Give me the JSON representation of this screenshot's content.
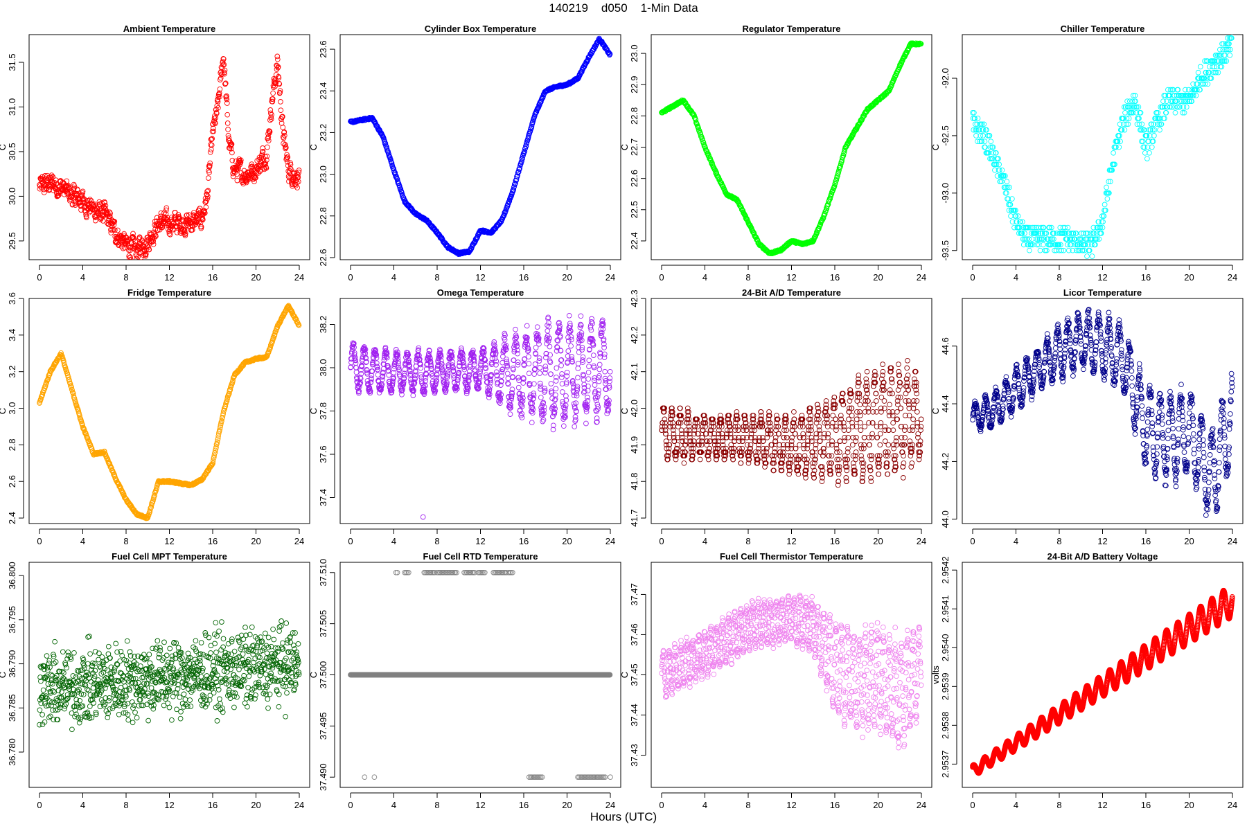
{
  "figure": {
    "title": "140219    d050    1-Min Data",
    "xlabel": "Hours (UTC)",
    "xticks": [
      0,
      4,
      8,
      12,
      16,
      20,
      24
    ]
  },
  "chart_data": [
    {
      "type": "scatter",
      "title": "Ambient Temperature",
      "ylabel": "C",
      "color": "#ff0000",
      "xlim": [
        -0.96,
        24.96
      ],
      "ylim": [
        29.29,
        31.81
      ],
      "yticks": [
        "29.5",
        "30.0",
        "30.5",
        "31.0",
        "31.5"
      ],
      "x": [
        0,
        1,
        2,
        3,
        4,
        5,
        6,
        7,
        8,
        9,
        10,
        11,
        12,
        13,
        14,
        15,
        15.5,
        16,
        16.5,
        17,
        17.5,
        18,
        19,
        20,
        21,
        21.5,
        22,
        22.5,
        23,
        24
      ],
      "y": [
        30.1,
        30.15,
        30.1,
        30.0,
        29.95,
        29.85,
        29.8,
        29.6,
        29.45,
        29.4,
        29.5,
        29.7,
        29.7,
        29.7,
        29.7,
        29.75,
        30.0,
        30.7,
        31.0,
        31.6,
        30.6,
        30.3,
        30.25,
        30.3,
        30.5,
        31.1,
        31.5,
        30.7,
        30.3,
        30.2
      ],
      "spread": 0.15,
      "style": "circles"
    },
    {
      "type": "line",
      "title": "Cylinder Box Temperature",
      "ylabel": "C",
      "color": "#0000ff",
      "xlim": [
        -0.96,
        24.96
      ],
      "ylim": [
        22.59,
        23.67
      ],
      "yticks": [
        "22.6",
        "22.8",
        "23.0",
        "23.2",
        "23.4",
        "23.6"
      ],
      "x": [
        0,
        1,
        2,
        3,
        4,
        5,
        6,
        7,
        8,
        9,
        10,
        11,
        12,
        13,
        14,
        15,
        16,
        17,
        18,
        19,
        20,
        21,
        22,
        23,
        24
      ],
      "y": [
        23.25,
        23.26,
        23.27,
        23.18,
        23.02,
        22.87,
        22.81,
        22.78,
        22.72,
        22.65,
        22.62,
        22.63,
        22.73,
        22.72,
        22.78,
        22.92,
        23.1,
        23.28,
        23.4,
        23.42,
        23.43,
        23.46,
        23.56,
        23.65,
        23.57
      ],
      "style": "thick"
    },
    {
      "type": "line",
      "title": "Regulator Temperature",
      "ylabel": "C",
      "color": "#00ff00",
      "xlim": [
        -0.96,
        24.96
      ],
      "ylim": [
        22.34,
        23.06
      ],
      "yticks": [
        "22.4",
        "22.5",
        "22.6",
        "22.7",
        "22.8",
        "22.9",
        "23.0"
      ],
      "x": [
        0,
        1,
        2,
        3,
        4,
        5,
        6,
        7,
        8,
        9,
        10,
        11,
        12,
        13,
        14,
        15,
        16,
        17,
        18,
        19,
        20,
        21,
        22,
        23,
        24
      ],
      "y": [
        22.81,
        22.83,
        22.85,
        22.8,
        22.7,
        22.62,
        22.55,
        22.53,
        22.46,
        22.39,
        22.36,
        22.37,
        22.4,
        22.39,
        22.4,
        22.48,
        22.58,
        22.7,
        22.76,
        22.82,
        22.85,
        22.88,
        22.96,
        23.03,
        23.03
      ],
      "style": "thick"
    },
    {
      "type": "scatter",
      "title": "Chiller Temperature",
      "ylabel": "C",
      "color": "#00ffff",
      "xlim": [
        -0.96,
        24.96
      ],
      "ylim": [
        -93.58,
        -91.62
      ],
      "yticks": [
        "-93.5",
        "-93.0",
        "-92.5",
        "-92.0"
      ],
      "x": [
        0,
        1,
        2,
        3,
        4,
        5,
        6,
        7,
        8,
        9,
        10,
        11,
        12,
        13,
        14,
        15,
        16,
        17,
        18,
        19,
        20,
        21,
        22,
        23,
        24
      ],
      "y": [
        -92.4,
        -92.5,
        -92.7,
        -92.95,
        -93.25,
        -93.4,
        -93.4,
        -93.4,
        -93.4,
        -93.4,
        -93.45,
        -93.45,
        -93.25,
        -92.7,
        -92.35,
        -92.2,
        -92.6,
        -92.4,
        -92.2,
        -92.2,
        -92.2,
        -92.0,
        -91.9,
        -91.8,
        -91.7
      ],
      "spread": 0.05,
      "style": "quantized"
    },
    {
      "type": "line",
      "title": "Fridge Temperature",
      "ylabel": "C",
      "color": "#ffa500",
      "xlim": [
        -0.96,
        24.96
      ],
      "ylim": [
        2.37,
        3.6
      ],
      "yticks": [
        "2.4",
        "2.6",
        "2.8",
        "3.0",
        "3.2",
        "3.4",
        "3.6"
      ],
      "x": [
        0,
        1,
        2,
        3,
        4,
        5,
        6,
        7,
        8,
        9,
        10,
        11,
        12,
        13,
        14,
        15,
        16,
        17,
        18,
        19,
        20,
        21,
        22,
        23,
        24
      ],
      "y": [
        3.03,
        3.2,
        3.3,
        3.1,
        2.9,
        2.75,
        2.76,
        2.62,
        2.5,
        2.42,
        2.4,
        2.6,
        2.6,
        2.59,
        2.58,
        2.61,
        2.7,
        2.98,
        3.18,
        3.25,
        3.27,
        3.28,
        3.45,
        3.56,
        3.45
      ],
      "style": "thick"
    },
    {
      "type": "scatter",
      "title": "Omega Temperature",
      "ylabel": "C",
      "color": "#a020f0",
      "xlim": [
        -0.96,
        24.96
      ],
      "ylim": [
        37.28,
        38.32
      ],
      "yticks": [
        "37.4",
        "37.6",
        "37.8",
        "38.0",
        "38.2"
      ],
      "x": [
        0,
        4,
        8,
        12,
        16,
        20,
        24
      ],
      "y": [
        38.0,
        37.98,
        37.98,
        37.99,
        37.97,
        37.98,
        38.0
      ],
      "amp": [
        0.12,
        0.1,
        0.1,
        0.1,
        0.22,
        0.25,
        0.22
      ],
      "period": 1.0,
      "outlier": [
        6.7,
        37.31
      ],
      "style": "oscillating"
    },
    {
      "type": "scatter",
      "title": "24-Bit A/D Temperature",
      "ylabel": "C",
      "color": "#8b0000",
      "xlim": [
        -0.96,
        24.96
      ],
      "ylim": [
        41.685,
        42.3
      ],
      "yticks": [
        "41.7",
        "41.8",
        "41.9",
        "42.0",
        "42.1",
        "42.2",
        "42.3"
      ],
      "x": [
        0,
        4,
        8,
        12,
        16,
        20,
        24
      ],
      "y": [
        41.93,
        41.92,
        41.92,
        41.9,
        41.92,
        41.96,
        41.98
      ],
      "amp": [
        0.08,
        0.06,
        0.07,
        0.08,
        0.12,
        0.16,
        0.14
      ],
      "period": 0.75,
      "quantum": 0.01,
      "style": "oscillating"
    },
    {
      "type": "scatter",
      "title": "Licor Temperature",
      "ylabel": "C",
      "color": "#00008b",
      "xlim": [
        -0.96,
        24.96
      ],
      "ylim": [
        43.985,
        44.765
      ],
      "yticks": [
        "44.0",
        "44.2",
        "44.4",
        "44.6"
      ],
      "x": [
        0,
        2,
        4,
        6,
        8,
        10,
        12,
        14,
        16,
        18,
        20,
        22,
        24
      ],
      "y": [
        44.35,
        44.38,
        44.45,
        44.52,
        44.58,
        44.62,
        44.6,
        44.55,
        44.32,
        44.28,
        44.3,
        44.15,
        44.35
      ],
      "amp": [
        0.05,
        0.07,
        0.08,
        0.08,
        0.1,
        0.1,
        0.12,
        0.12,
        0.15,
        0.16,
        0.16,
        0.17,
        0.17
      ],
      "period": 0.95,
      "style": "oscillating"
    },
    {
      "type": "scatter",
      "title": "Fuel Cell MPT Temperature",
      "ylabel": "C",
      "color": "#006400",
      "xlim": [
        -0.96,
        24.96
      ],
      "ylim": [
        36.776,
        36.8015
      ],
      "yticks": [
        "36.780",
        "36.785",
        "36.790",
        "36.795",
        "36.800"
      ],
      "x": [
        0,
        8,
        16,
        24
      ],
      "y": [
        36.787,
        36.788,
        36.789,
        36.79
      ],
      "spread": 0.0035,
      "style": "noise"
    },
    {
      "type": "scatter",
      "title": "Fuel Cell RTD Temperature",
      "ylabel": "C",
      "color": "#808080",
      "xlim": [
        -0.96,
        24.96
      ],
      "ylim": [
        37.489,
        37.511
      ],
      "yticks": [
        "37.490",
        "37.495",
        "37.500",
        "37.505",
        "37.510"
      ],
      "baseline": 37.5,
      "high_value": 37.51,
      "low_value": 37.49,
      "high_x_ranges": [
        [
          4.2,
          4.4
        ],
        [
          5,
          5.4
        ],
        [
          6.8,
          7.8
        ],
        [
          8,
          9.8
        ],
        [
          10.5,
          11.5
        ],
        [
          11.8,
          12.5
        ],
        [
          13.2,
          14.5
        ],
        [
          14.6,
          15
        ]
      ],
      "low_x_ranges": [
        [
          1.3,
          1.4
        ],
        [
          2.2,
          2.3
        ],
        [
          16.5,
          17.8
        ],
        [
          21,
          23.6
        ],
        [
          24,
          24.05
        ]
      ],
      "style": "levels"
    },
    {
      "type": "scatter",
      "title": "Fuel Cell Thermistor Temperature",
      "ylabel": "C",
      "color": "#ee82ee",
      "xlim": [
        -0.96,
        24.96
      ],
      "ylim": [
        37.422,
        37.478
      ],
      "yticks": [
        "37.43",
        "37.44",
        "37.45",
        "37.46",
        "37.47"
      ],
      "x": [
        0,
        4,
        8,
        12,
        14,
        16,
        18,
        20,
        22,
        24
      ],
      "y": [
        37.45,
        37.455,
        37.462,
        37.464,
        37.462,
        37.452,
        37.448,
        37.45,
        37.445,
        37.452
      ],
      "amp": [
        0.006,
        0.006,
        0.006,
        0.006,
        0.007,
        0.012,
        0.013,
        0.013,
        0.014,
        0.012
      ],
      "period": 0.55,
      "style": "oscillating"
    },
    {
      "type": "line",
      "title": "24-Bit A/D Battery Voltage",
      "ylabel": "volts",
      "color": "#ff0000",
      "xlim": [
        -0.96,
        24.96
      ],
      "ylim": [
        2.95364,
        2.95422
      ],
      "yticks": [
        "2.9537",
        "2.9538",
        "2.9539",
        "2.9540",
        "2.9541",
        "2.9542"
      ],
      "x": [
        0,
        24
      ],
      "y": [
        2.95368,
        2.95412
      ],
      "amp": [
        1.3e-05,
        4e-05
      ],
      "period": 1.05,
      "style": "thickwave"
    }
  ]
}
